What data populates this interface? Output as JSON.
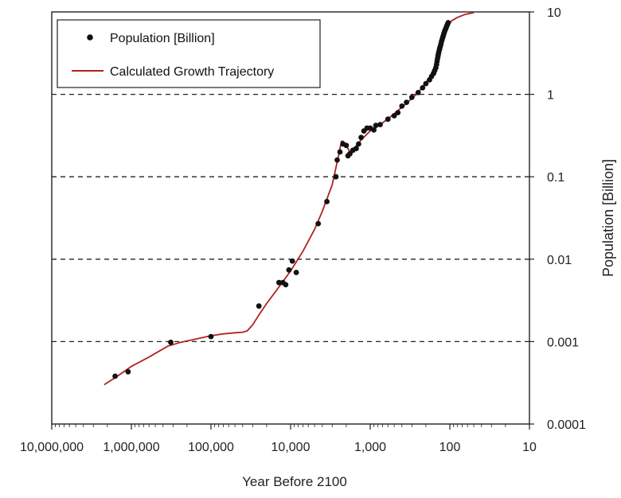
{
  "chart_data": {
    "type": "scatter",
    "title": "",
    "xlabel": "Year Before 2100",
    "ylabel": "Population [Billion]",
    "x_scale": "log",
    "x_reversed": true,
    "y_scale": "log",
    "xlim": [
      10000000,
      10
    ],
    "ylim": [
      0.0001,
      10
    ],
    "x_ticks": [
      {
        "value": 10000000,
        "label": "10,000,000"
      },
      {
        "value": 1000000,
        "label": "1,000,000"
      },
      {
        "value": 100000,
        "label": "100,000"
      },
      {
        "value": 10000,
        "label": "10,000"
      },
      {
        "value": 1000,
        "label": "1,000"
      },
      {
        "value": 100,
        "label": "100"
      },
      {
        "value": 10,
        "label": "10"
      }
    ],
    "y_ticks": [
      {
        "value": 10,
        "label": "10"
      },
      {
        "value": 1,
        "label": "1"
      },
      {
        "value": 0.1,
        "label": "0.1"
      },
      {
        "value": 0.01,
        "label": "0.01"
      },
      {
        "value": 0.001,
        "label": "0.001"
      },
      {
        "value": 0.0001,
        "label": "0.0001"
      }
    ],
    "gridlines": {
      "y": [
        1,
        0.1,
        0.01,
        0.001
      ],
      "style": "dashed"
    },
    "legend": {
      "position": "top-left"
    },
    "series": [
      {
        "name": "Population [Billion]",
        "kind": "scatter",
        "color": "#111111",
        "points": [
          [
            1600000,
            0.00038
          ],
          [
            1100000,
            0.00043
          ],
          [
            320000,
            0.00098
          ],
          [
            100000,
            0.00115
          ],
          [
            25000,
            0.0027
          ],
          [
            14000,
            0.0052
          ],
          [
            12500,
            0.0052
          ],
          [
            11500,
            0.0049
          ],
          [
            10500,
            0.0074
          ],
          [
            9500,
            0.0095
          ],
          [
            8500,
            0.0069
          ],
          [
            4500,
            0.027
          ],
          [
            3500,
            0.05
          ],
          [
            2700,
            0.1
          ],
          [
            2600,
            0.16
          ],
          [
            2400,
            0.2
          ],
          [
            2200,
            0.25
          ],
          [
            2000,
            0.24
          ],
          [
            1900,
            0.18
          ],
          [
            1800,
            0.19
          ],
          [
            1650,
            0.21
          ],
          [
            1500,
            0.22
          ],
          [
            1400,
            0.25
          ],
          [
            1300,
            0.3
          ],
          [
            1200,
            0.36
          ],
          [
            1100,
            0.39
          ],
          [
            1000,
            0.39
          ],
          [
            900,
            0.37
          ],
          [
            850,
            0.42
          ],
          [
            750,
            0.43
          ],
          [
            600,
            0.5
          ],
          [
            500,
            0.55
          ],
          [
            450,
            0.6
          ],
          [
            400,
            0.72
          ],
          [
            350,
            0.8
          ],
          [
            300,
            0.92
          ],
          [
            250,
            1.05
          ],
          [
            220,
            1.2
          ],
          [
            200,
            1.35
          ],
          [
            180,
            1.5
          ],
          [
            170,
            1.65
          ],
          [
            160,
            1.8
          ],
          [
            155,
            1.95
          ],
          [
            150,
            2.1
          ],
          [
            147,
            2.3
          ],
          [
            145,
            2.5
          ],
          [
            143,
            2.7
          ],
          [
            141,
            2.9
          ],
          [
            139,
            3.1
          ],
          [
            137,
            3.3
          ],
          [
            135,
            3.5
          ],
          [
            133,
            3.7
          ],
          [
            131,
            3.9
          ],
          [
            129,
            4.1
          ],
          [
            127,
            4.4
          ],
          [
            125,
            4.6
          ],
          [
            123,
            4.9
          ],
          [
            121,
            5.1
          ],
          [
            119,
            5.4
          ],
          [
            117,
            5.7
          ],
          [
            115,
            6.0
          ],
          [
            113,
            6.2
          ],
          [
            111,
            6.5
          ],
          [
            109,
            6.8
          ],
          [
            107,
            7.1
          ],
          [
            105,
            7.4
          ]
        ]
      },
      {
        "name": "Calculated Growth Trajectory",
        "kind": "line",
        "color": "#b22222",
        "points": [
          [
            2200000,
            0.0003
          ],
          [
            1500000,
            0.00038
          ],
          [
            1000000,
            0.0005
          ],
          [
            600000,
            0.00065
          ],
          [
            350000,
            0.00088
          ],
          [
            250000,
            0.00097
          ],
          [
            150000,
            0.00108
          ],
          [
            100000,
            0.00118
          ],
          [
            70000,
            0.00124
          ],
          [
            50000,
            0.00128
          ],
          [
            40000,
            0.0013
          ],
          [
            35000,
            0.00135
          ],
          [
            30000,
            0.0016
          ],
          [
            25000,
            0.0021
          ],
          [
            20000,
            0.0029
          ],
          [
            15000,
            0.0042
          ],
          [
            10000,
            0.0072
          ],
          [
            7000,
            0.0125
          ],
          [
            5000,
            0.023
          ],
          [
            4000,
            0.038
          ],
          [
            3000,
            0.08
          ],
          [
            2500,
            0.18
          ],
          [
            2300,
            0.27
          ],
          [
            2200,
            0.27
          ],
          [
            2000,
            0.24
          ],
          [
            1800,
            0.2
          ],
          [
            1600,
            0.22
          ],
          [
            1300,
            0.28
          ],
          [
            1000,
            0.36
          ],
          [
            700,
            0.45
          ],
          [
            500,
            0.58
          ],
          [
            350,
            0.78
          ],
          [
            250,
            1.05
          ],
          [
            180,
            1.6
          ],
          [
            140,
            2.7
          ],
          [
            120,
            4.6
          ],
          [
            105,
            6.8
          ],
          [
            95,
            7.8
          ],
          [
            80,
            8.6
          ],
          [
            65,
            9.3
          ],
          [
            50,
            9.8
          ]
        ]
      }
    ]
  }
}
